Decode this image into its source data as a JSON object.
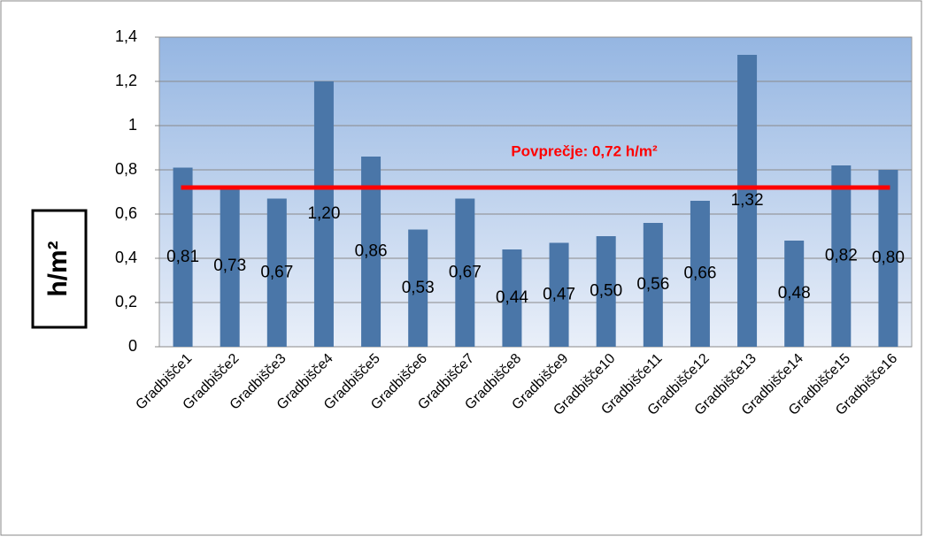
{
  "chart_data": {
    "type": "bar",
    "y_axis_label": "h/m²",
    "categories": [
      "Gradbišče1",
      "Gradbišče2",
      "Gradbišče3",
      "Gradbišče4",
      "Gradbišče5",
      "Gradbišče6",
      "Gradbišče7",
      "Gradbišče8",
      "Gradbišče9",
      "Gradbišče10",
      "Gradbišče11",
      "Gradbišče12",
      "Gradbišče13",
      "Gradbišče14",
      "Gradbišče15",
      "Gradbišče16"
    ],
    "values": [
      0.81,
      0.73,
      0.67,
      1.2,
      0.86,
      0.53,
      0.67,
      0.44,
      0.47,
      0.5,
      0.56,
      0.66,
      1.32,
      0.48,
      0.82,
      0.8
    ],
    "value_labels": [
      "0,81",
      "0,73",
      "0,67",
      "1,20",
      "0,86",
      "0,53",
      "0,67",
      "0,44",
      "0,47",
      "0,50",
      "0,56",
      "0,66",
      "1,32",
      "0,48",
      "0,82",
      "0,80"
    ],
    "color": "#4a76a8",
    "ylim": [
      0,
      1.4
    ],
    "yticks": [
      0,
      {
        "value": 0.2,
        "label": "0,2"
      },
      {
        "value": 0.4,
        "label": "0,4"
      },
      {
        "value": 0.6,
        "label": "0,6"
      },
      {
        "value": 0.8,
        "label": "0,8"
      },
      1,
      {
        "value": 1.2,
        "label": "1,2"
      },
      {
        "value": 1.4,
        "label": "1,4"
      }
    ],
    "grid": true,
    "average": {
      "value": 0.72,
      "label": "Povprečje: 0,72 h/m²",
      "color": "#ff0000"
    }
  }
}
